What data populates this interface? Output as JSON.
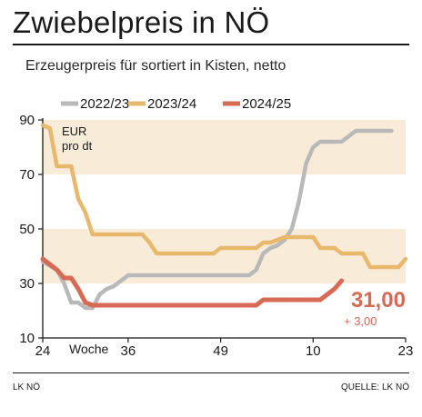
{
  "title": "Zwiebelpreis in NÖ",
  "subtitle": "Erzeugerpreis für sortiert in Kisten, netto",
  "footer": {
    "left": "LK NÖ",
    "right": "QUELLE: LK NÖ"
  },
  "colors": {
    "band": "#f8ecd9",
    "axis": "#1a1a1a",
    "annotation": "#d76a55"
  },
  "chart_data": {
    "type": "line",
    "unit_label_line1": "EUR",
    "unit_label_line2": "pro dt",
    "x_axis_label": "Woche",
    "x_tick_labels": [
      {
        "week_index": 0,
        "label": "24"
      },
      {
        "week_index": 12,
        "label": "36"
      },
      {
        "week_index": 25,
        "label": "49"
      },
      {
        "week_index": 38,
        "label": "10"
      },
      {
        "week_index": 51,
        "label": "23"
      }
    ],
    "week_range": [
      0,
      51
    ],
    "y_ticks": [
      10,
      30,
      50,
      70,
      90
    ],
    "ylim": [
      10,
      90
    ],
    "shaded_bands": [
      [
        30,
        50
      ],
      [
        70,
        90
      ]
    ],
    "grid": false,
    "legend_position": "top",
    "series": [
      {
        "name": "2022/23",
        "color": "#b9b9b9",
        "points": [
          [
            0,
            38
          ],
          [
            2,
            35
          ],
          [
            3,
            30
          ],
          [
            4,
            23
          ],
          [
            5,
            23
          ],
          [
            6,
            21
          ],
          [
            7,
            21
          ],
          [
            8,
            26
          ],
          [
            9,
            28
          ],
          [
            10,
            29
          ],
          [
            11,
            31
          ],
          [
            12,
            33
          ],
          [
            13,
            33
          ],
          [
            14,
            33
          ],
          [
            15,
            33
          ],
          [
            16,
            33
          ],
          [
            17,
            33
          ],
          [
            18,
            33
          ],
          [
            19,
            33
          ],
          [
            20,
            33
          ],
          [
            21,
            33
          ],
          [
            22,
            33
          ],
          [
            23,
            33
          ],
          [
            24,
            33
          ],
          [
            25,
            33
          ],
          [
            26,
            33
          ],
          [
            27,
            33
          ],
          [
            28,
            33
          ],
          [
            29,
            33
          ],
          [
            30,
            35
          ],
          [
            31,
            41
          ],
          [
            32,
            43
          ],
          [
            33,
            44
          ],
          [
            34,
            46
          ],
          [
            35,
            50
          ],
          [
            36,
            60
          ],
          [
            37,
            74
          ],
          [
            38,
            80
          ],
          [
            39,
            82
          ],
          [
            40,
            82
          ],
          [
            41,
            82
          ],
          [
            42,
            82
          ],
          [
            43,
            84
          ],
          [
            44,
            86
          ],
          [
            45,
            86
          ],
          [
            46,
            86
          ],
          [
            47,
            86
          ],
          [
            48,
            86
          ],
          [
            49,
            86
          ]
        ]
      },
      {
        "name": "2023/24",
        "color": "#e8b86d",
        "points": [
          [
            0,
            88
          ],
          [
            1,
            87
          ],
          [
            2,
            73
          ],
          [
            3,
            73
          ],
          [
            4,
            73
          ],
          [
            5,
            61
          ],
          [
            6,
            56
          ],
          [
            7,
            48
          ],
          [
            8,
            48
          ],
          [
            9,
            48
          ],
          [
            10,
            48
          ],
          [
            11,
            48
          ],
          [
            12,
            48
          ],
          [
            13,
            48
          ],
          [
            14,
            48
          ],
          [
            15,
            45
          ],
          [
            16,
            41
          ],
          [
            17,
            41
          ],
          [
            18,
            41
          ],
          [
            19,
            41
          ],
          [
            20,
            41
          ],
          [
            21,
            41
          ],
          [
            22,
            41
          ],
          [
            23,
            41
          ],
          [
            24,
            41
          ],
          [
            25,
            43
          ],
          [
            26,
            43
          ],
          [
            27,
            43
          ],
          [
            28,
            43
          ],
          [
            29,
            43
          ],
          [
            30,
            43
          ],
          [
            31,
            45
          ],
          [
            32,
            45
          ],
          [
            33,
            46
          ],
          [
            34,
            47
          ],
          [
            35,
            47
          ],
          [
            36,
            47
          ],
          [
            37,
            47
          ],
          [
            38,
            47
          ],
          [
            39,
            43
          ],
          [
            40,
            43
          ],
          [
            41,
            43
          ],
          [
            42,
            41
          ],
          [
            43,
            41
          ],
          [
            44,
            41
          ],
          [
            45,
            41
          ],
          [
            46,
            36
          ],
          [
            47,
            36
          ],
          [
            48,
            36
          ],
          [
            49,
            36
          ],
          [
            50,
            36
          ],
          [
            51,
            39
          ]
        ]
      },
      {
        "name": "2024/25",
        "color": "#d76a55",
        "points": [
          [
            0,
            39
          ],
          [
            1,
            37
          ],
          [
            2,
            35
          ],
          [
            3,
            32
          ],
          [
            4,
            32
          ],
          [
            5,
            28
          ],
          [
            6,
            23
          ],
          [
            7,
            22
          ],
          [
            8,
            22
          ],
          [
            9,
            22
          ],
          [
            10,
            22
          ],
          [
            11,
            22
          ],
          [
            12,
            22
          ],
          [
            13,
            22
          ],
          [
            14,
            22
          ],
          [
            15,
            22
          ],
          [
            16,
            22
          ],
          [
            17,
            22
          ],
          [
            18,
            22
          ],
          [
            19,
            22
          ],
          [
            20,
            22
          ],
          [
            21,
            22
          ],
          [
            22,
            22
          ],
          [
            23,
            22
          ],
          [
            24,
            22
          ],
          [
            25,
            22
          ],
          [
            26,
            22
          ],
          [
            27,
            22
          ],
          [
            28,
            22
          ],
          [
            29,
            22
          ],
          [
            30,
            22
          ],
          [
            31,
            24
          ],
          [
            32,
            24
          ],
          [
            33,
            24
          ],
          [
            34,
            24
          ],
          [
            35,
            24
          ],
          [
            36,
            24
          ],
          [
            37,
            24
          ],
          [
            38,
            24
          ],
          [
            39,
            24
          ],
          [
            40,
            26
          ],
          [
            41,
            28
          ],
          [
            42,
            31
          ]
        ]
      }
    ],
    "annotations": {
      "value": "31,00",
      "change": "+ 3,00"
    }
  }
}
